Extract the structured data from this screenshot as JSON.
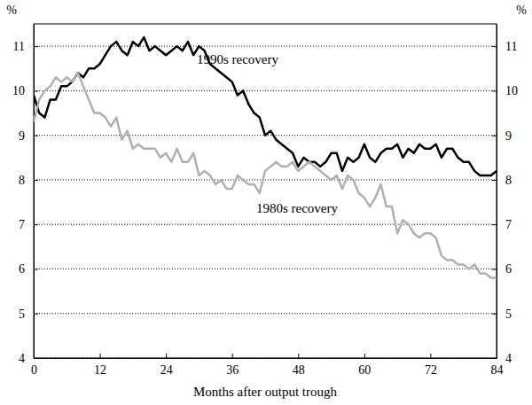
{
  "chart_data": {
    "type": "line",
    "xlabel": "Months after output trough",
    "ylabel": "%",
    "y2label": "%",
    "x": [
      0,
      1,
      2,
      3,
      4,
      5,
      6,
      7,
      8,
      9,
      10,
      11,
      12,
      13,
      14,
      15,
      16,
      17,
      18,
      19,
      20,
      21,
      22,
      23,
      24,
      25,
      26,
      27,
      28,
      29,
      30,
      31,
      32,
      33,
      34,
      35,
      36,
      37,
      38,
      39,
      40,
      41,
      42,
      43,
      44,
      45,
      46,
      47,
      48,
      49,
      50,
      51,
      52,
      53,
      54,
      55,
      56,
      57,
      58,
      59,
      60,
      61,
      62,
      63,
      64,
      65,
      66,
      67,
      68,
      69,
      70,
      71,
      72,
      73,
      74,
      75,
      76,
      77,
      78,
      79,
      80,
      81,
      82,
      83,
      84
    ],
    "series": [
      {
        "name": "1990s recovery",
        "color": "#000000",
        "values": [
          9.9,
          9.5,
          9.4,
          9.8,
          9.8,
          10.1,
          10.1,
          10.2,
          10.4,
          10.3,
          10.5,
          10.5,
          10.6,
          10.8,
          11.0,
          11.1,
          10.9,
          10.8,
          11.1,
          11.0,
          11.2,
          10.9,
          11.0,
          10.9,
          10.8,
          10.9,
          11.0,
          10.9,
          11.1,
          10.8,
          11.0,
          10.9,
          10.6,
          10.5,
          10.4,
          10.3,
          10.2,
          9.9,
          10.0,
          9.7,
          9.5,
          9.4,
          9.0,
          9.1,
          8.9,
          8.8,
          8.7,
          8.6,
          8.3,
          8.5,
          8.4,
          8.4,
          8.3,
          8.4,
          8.6,
          8.6,
          8.2,
          8.5,
          8.4,
          8.5,
          8.8,
          8.5,
          8.4,
          8.6,
          8.7,
          8.7,
          8.8,
          8.5,
          8.7,
          8.6,
          8.8,
          8.7,
          8.7,
          8.8,
          8.5,
          8.7,
          8.7,
          8.5,
          8.4,
          8.4,
          8.2,
          8.1,
          8.1,
          8.1,
          8.2
        ]
      },
      {
        "name": "1980s recovery",
        "color": "#b0b0b0",
        "values": [
          9.3,
          9.8,
          10.0,
          10.1,
          10.3,
          10.2,
          10.3,
          10.2,
          10.4,
          10.1,
          9.8,
          9.5,
          9.5,
          9.4,
          9.2,
          9.4,
          8.9,
          9.1,
          8.7,
          8.8,
          8.7,
          8.7,
          8.7,
          8.5,
          8.6,
          8.4,
          8.7,
          8.4,
          8.4,
          8.6,
          8.1,
          8.2,
          8.1,
          7.9,
          8.0,
          7.8,
          7.8,
          8.1,
          8.0,
          7.9,
          7.9,
          7.7,
          8.2,
          8.3,
          8.4,
          8.3,
          8.3,
          8.4,
          8.2,
          8.3,
          8.4,
          8.3,
          8.2,
          8.1,
          8.0,
          8.1,
          7.8,
          8.1,
          8.0,
          7.7,
          7.6,
          7.4,
          7.6,
          7.9,
          7.4,
          7.4,
          6.8,
          7.1,
          7.0,
          6.8,
          6.7,
          6.8,
          6.8,
          6.7,
          6.3,
          6.2,
          6.2,
          6.1,
          6.1,
          6.0,
          6.1,
          5.9,
          5.9,
          5.8,
          5.8
        ]
      }
    ],
    "xlim": [
      0,
      84
    ],
    "xticks": [
      0,
      12,
      24,
      36,
      48,
      60,
      72,
      84
    ],
    "ylim": [
      4,
      11.5
    ],
    "yticks": [
      4,
      5,
      6,
      7,
      8,
      9,
      10,
      11
    ],
    "y2lim": [
      4,
      11.5
    ],
    "y2ticks": [
      4,
      5,
      6,
      7,
      8,
      9,
      10,
      11
    ],
    "grid": true
  }
}
